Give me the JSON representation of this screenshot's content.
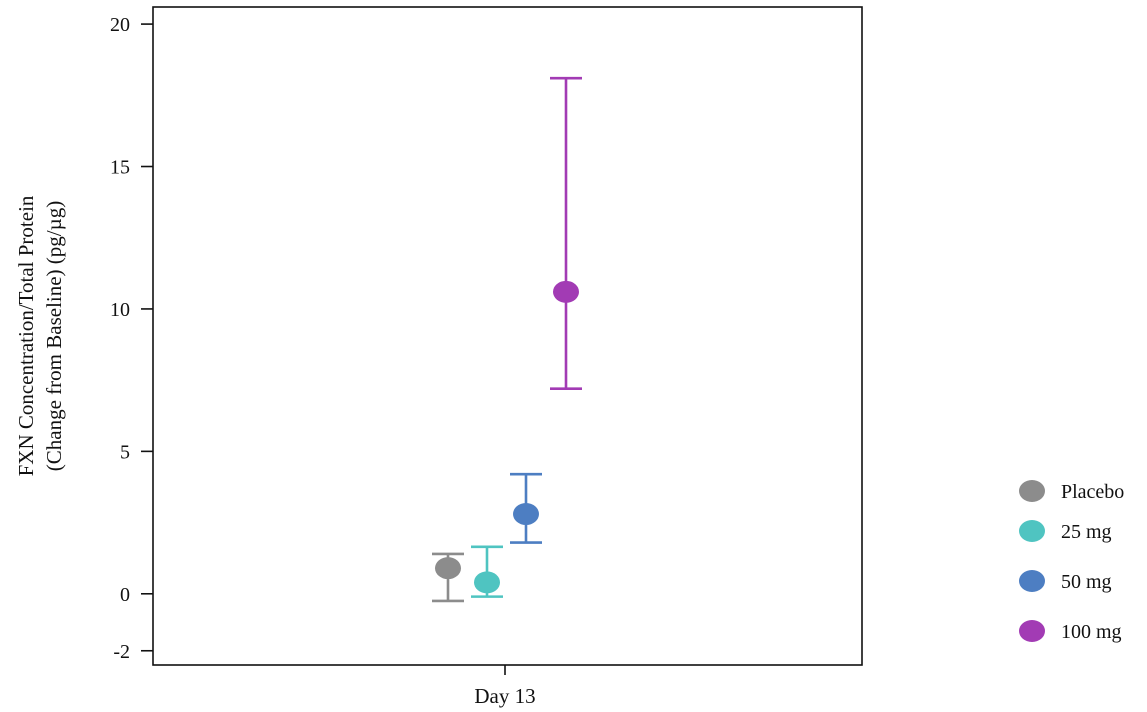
{
  "chart_data": {
    "type": "scatter",
    "subtype": "point-with-error-bars",
    "title": "",
    "categories": [
      "Day 13"
    ],
    "ylabel_lines": [
      "FXN Concentration/Total Protein",
      "(Change from Baseline) (pg/µg)"
    ],
    "xlabel": "",
    "ylim": [
      -2.5,
      20.6
    ],
    "yticks": [
      -2,
      0,
      5,
      10,
      15,
      20
    ],
    "grid": false,
    "legend_position": "right",
    "series": [
      {
        "name": "Placebo",
        "color": "#8c8c8c",
        "category": "Day 13",
        "value": 0.9,
        "lower": -0.25,
        "upper": 1.4
      },
      {
        "name": "25 mg",
        "color": "#4fc4c1",
        "category": "Day 13",
        "value": 0.4,
        "lower": -0.1,
        "upper": 1.65
      },
      {
        "name": "50 mg",
        "color": "#4d7ec2",
        "category": "Day 13",
        "value": 2.8,
        "lower": 1.8,
        "upper": 4.2
      },
      {
        "name": "100 mg",
        "color": "#a23bb4",
        "category": "Day 13",
        "value": 10.6,
        "lower": 7.2,
        "upper": 18.1
      }
    ]
  }
}
